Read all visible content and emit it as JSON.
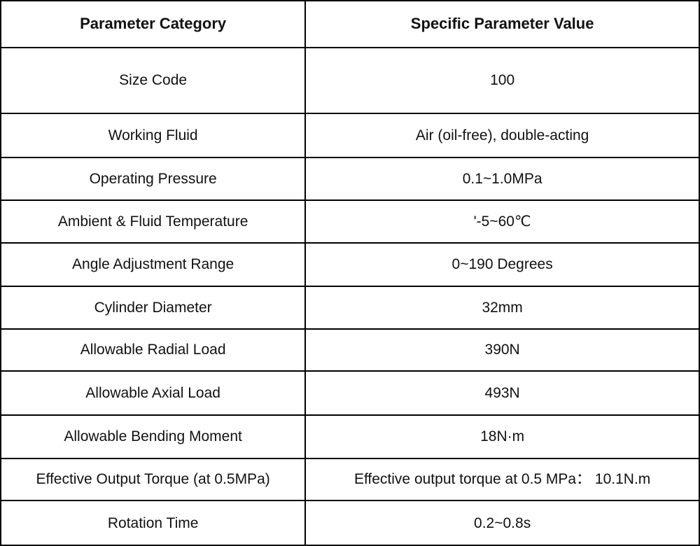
{
  "table": {
    "headers": {
      "category": "Parameter Category",
      "value": "Specific Parameter Value"
    },
    "rows": [
      {
        "category": "Size Code",
        "value": "100"
      },
      {
        "category": "Working Fluid",
        "value": "Air (oil-free), double-acting"
      },
      {
        "category": "Operating Pressure",
        "value": "0.1~1.0MPa"
      },
      {
        "category": "Ambient & Fluid Temperature",
        "value": "'-5~60℃"
      },
      {
        "category": "Angle Adjustment Range",
        "value": "0~190 Degrees"
      },
      {
        "category": "Cylinder Diameter",
        "value": "32mm"
      },
      {
        "category": "Allowable Radial Load",
        "value": "390N"
      },
      {
        "category": "Allowable Axial Load",
        "value": "493N"
      },
      {
        "category": "Allowable Bending Moment",
        "value": "18N·m"
      },
      {
        "category": "Effective Output Torque (at 0.5MPa)",
        "value": "Effective output torque at 0.5 MPa： 10.1N.m"
      },
      {
        "category": "Rotation Time",
        "value": "0.2~0.8s"
      }
    ],
    "colors": {
      "border": "#000000",
      "text": "#111111",
      "background": "#ffffff"
    }
  }
}
